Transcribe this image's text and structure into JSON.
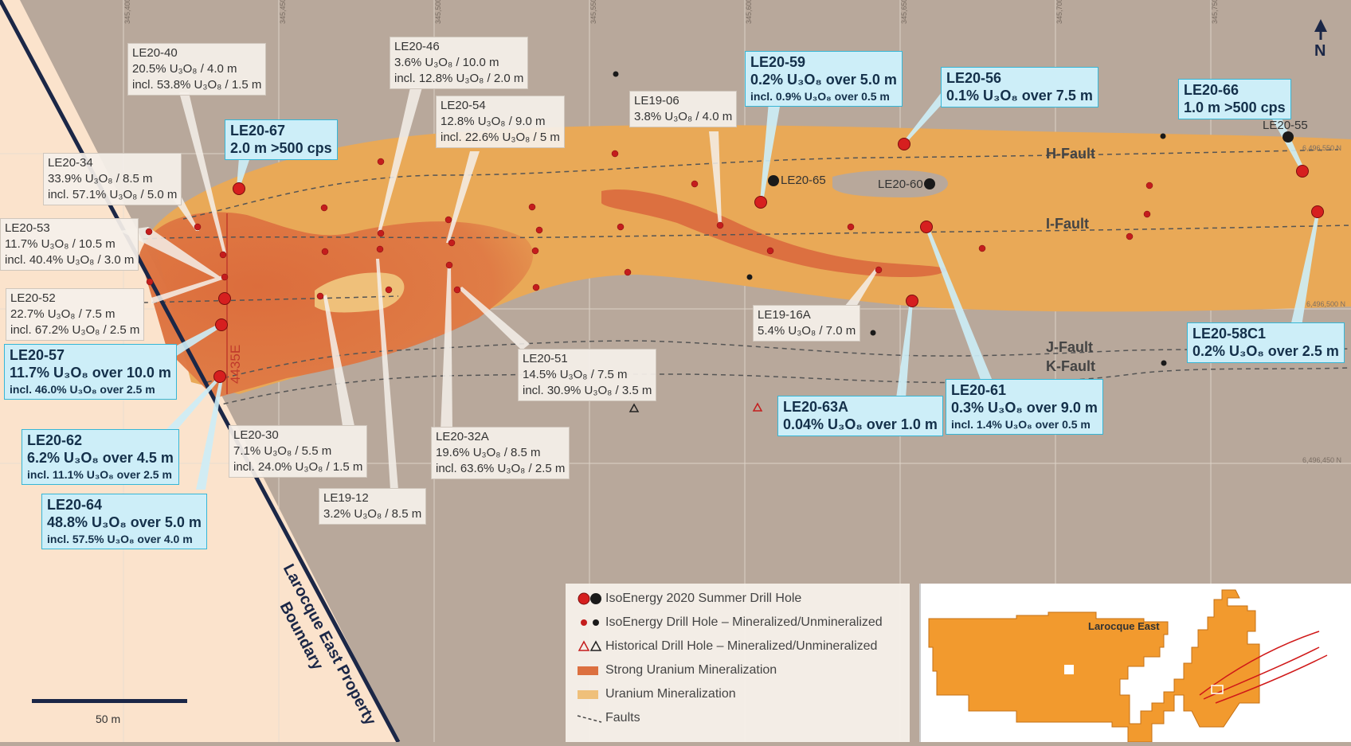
{
  "map": {
    "north_label": "N",
    "easting_ticks": [
      "345,400E",
      "345,450E",
      "345,500E",
      "345,550E",
      "345,600E",
      "345,650E",
      "345,700E",
      "345,750E"
    ],
    "northing_ticks": [
      "6,496,550 N",
      "6,496,500 N",
      "6,496,450 N"
    ],
    "section_label": "4435E",
    "boundary_label_line1": "Larocque East Property",
    "boundary_label_line2": "Boundary",
    "scale_label": "50 m",
    "colors": {
      "background": "#b8a89b",
      "property": "#fbe3cc",
      "mineralization": "#e9a957",
      "strong_mineralization": "#dc7040",
      "boundary": "#1b2747",
      "callout_blue": "#cdeef8",
      "drill_red": "#c41d1d"
    }
  },
  "faults": {
    "h": "H-Fault",
    "i": "I-Fault",
    "j": "J-Fault",
    "k": "K-Fault"
  },
  "hole_names": {
    "le20_65": "LE20-65",
    "le20_60": "LE20-60",
    "le20_55": "LE20-55"
  },
  "grey_labels": [
    {
      "name": "LE20-40",
      "l1": "20.5% U₃O₈ / 4.0 m",
      "l2": "incl. 53.8% U₃O₈ / 1.5 m"
    },
    {
      "name": "LE20-34",
      "l1": "33.9% U₃O₈ / 8.5 m",
      "l2": "incl. 57.1% U₃O₈ / 5.0 m"
    },
    {
      "name": "LE20-53",
      "l1": "11.7% U₃O₈ / 10.5 m",
      "l2": "incl. 40.4% U₃O₈ / 3.0 m"
    },
    {
      "name": "LE20-52",
      "l1": "22.7% U₃O₈ / 7.5 m",
      "l2": "incl. 67.2% U₃O₈ / 2.5 m"
    },
    {
      "name": "LE20-46",
      "l1": "3.6% U₃O₈ / 10.0 m",
      "l2": "incl. 12.8% U₃O₈ / 2.0 m"
    },
    {
      "name": "LE20-54",
      "l1": "12.8% U₃O₈ / 9.0 m",
      "l2": "incl. 22.6% U₃O₈ / 5 m"
    },
    {
      "name": "LE19-06",
      "l1": "3.8% U₃O₈ / 4.0 m",
      "l2": ""
    },
    {
      "name": "LE20-51",
      "l1": "14.5% U₃O₈ / 7.5 m",
      "l2": "incl. 30.9% U₃O₈ / 3.5 m"
    },
    {
      "name": "LE20-30",
      "l1": "7.1% U₃O₈ / 5.5 m",
      "l2": "incl. 24.0% U₃O₈ / 1.5 m"
    },
    {
      "name": "LE20-32A",
      "l1": "19.6% U₃O₈ / 8.5 m",
      "l2": "incl. 63.6% U₃O₈ / 2.5 m"
    },
    {
      "name": "LE19-12",
      "l1": "3.2% U₃O₈ / 8.5 m",
      "l2": ""
    },
    {
      "name": "LE19-16A",
      "l1": "5.4% U₃O₈ / 7.0 m",
      "l2": ""
    }
  ],
  "blue_labels": [
    {
      "name": "LE20-67",
      "l1": "2.0 m >500 cps",
      "l2": ""
    },
    {
      "name": "LE20-59",
      "l1": "0.2% U₃O₈ over 5.0 m",
      "l2": "incl. 0.9% U₃O₈ over 0.5 m"
    },
    {
      "name": "LE20-56",
      "l1": "0.1% U₃O₈ over 7.5 m",
      "l2": ""
    },
    {
      "name": "LE20-66",
      "l1": "1.0 m >500 cps",
      "l2": ""
    },
    {
      "name": "LE20-57",
      "l1": "11.7% U₃O₈ over 10.0 m",
      "l2": "incl. 46.0% U₃O₈ over 2.5 m"
    },
    {
      "name": "LE20-62",
      "l1": "6.2% U₃O₈ over 4.5 m",
      "l2": "incl. 11.1% U₃O₈ over 2.5 m"
    },
    {
      "name": "LE20-64",
      "l1": "48.8% U₃O₈ over 5.0 m",
      "l2": "incl. 57.5% U₃O₈ over 4.0 m"
    },
    {
      "name": "LE20-58C1",
      "l1": "0.2% U₃O₈ over 2.5 m",
      "l2": ""
    },
    {
      "name": "LE20-63A",
      "l1": "0.04% U₃O₈ over 1.0 m",
      "l2": ""
    },
    {
      "name": "LE20-61",
      "l1": "0.3% U₃O₈ over 9.0 m",
      "l2": "incl. 1.4% U₃O₈ over 0.5 m"
    }
  ],
  "legend": {
    "items": [
      "IsoEnergy 2020 Summer Drill Hole",
      "IsoEnergy Drill Hole – Mineralized/Unmineralized",
      "Historical Drill Hole – Mineralized/Unmineralized",
      "Strong Uranium Mineralization",
      "Uranium  Mineralization",
      "Faults"
    ]
  },
  "inset": {
    "label": "Larocque East"
  }
}
